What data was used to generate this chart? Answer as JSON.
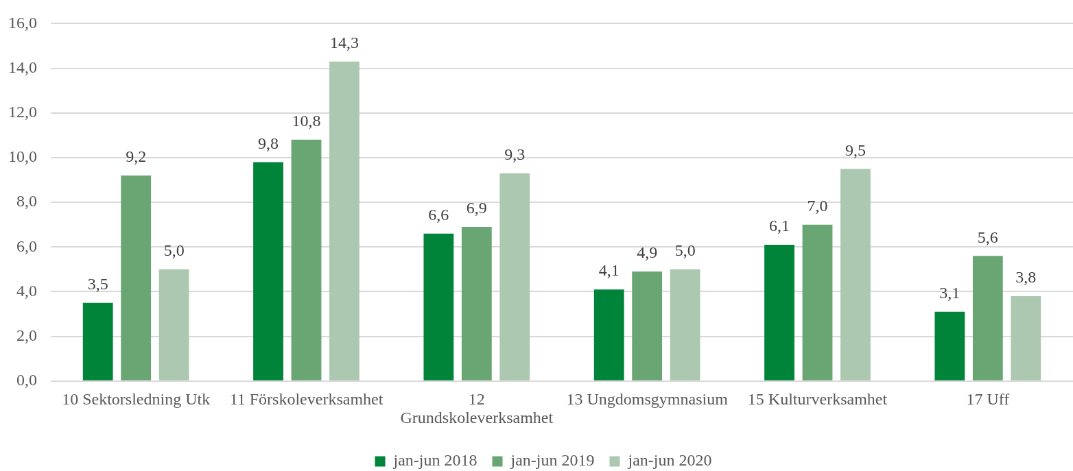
{
  "chart_data": {
    "type": "bar",
    "categories": [
      "10 Sektorsledning Utk",
      "11 Förskoleverksamhet",
      "12 Grundskoleverksamhet",
      "13 Ungdomsgymnasium",
      "15 Kulturverksamhet",
      "17 Uff"
    ],
    "series": [
      {
        "name": "jan-jun 2018",
        "color": "#00843a",
        "values": [
          3.5,
          9.8,
          6.6,
          4.1,
          6.1,
          3.1
        ],
        "value_labels": [
          "3,5",
          "9,8",
          "6,6",
          "4,1",
          "6,1",
          "3,1"
        ]
      },
      {
        "name": "jan-jun 2019",
        "color": "#6aa673",
        "values": [
          9.2,
          10.8,
          6.9,
          4.9,
          7.0,
          5.6
        ],
        "value_labels": [
          "9,2",
          "10,8",
          "6,9",
          "4,9",
          "7,0",
          "5,6"
        ]
      },
      {
        "name": "jan-jun 2020",
        "color": "#adc8b0",
        "values": [
          5.0,
          14.3,
          9.3,
          5.0,
          9.5,
          3.8
        ],
        "value_labels": [
          "5,0",
          "14,3",
          "9,3",
          "5,0",
          "9,5",
          "3,8"
        ]
      }
    ],
    "ylim": [
      0,
      16
    ],
    "yticks": [
      {
        "value": 0,
        "label": "0,0"
      },
      {
        "value": 2,
        "label": "2,0"
      },
      {
        "value": 4,
        "label": "4,0"
      },
      {
        "value": 6,
        "label": "6,0"
      },
      {
        "value": 8,
        "label": "8,0"
      },
      {
        "value": 10,
        "label": "10,0"
      },
      {
        "value": 12,
        "label": "12,0"
      },
      {
        "value": 14,
        "label": "14,0"
      },
      {
        "value": 16,
        "label": "16,0"
      }
    ],
    "grid": "y",
    "legend": "bottom"
  }
}
